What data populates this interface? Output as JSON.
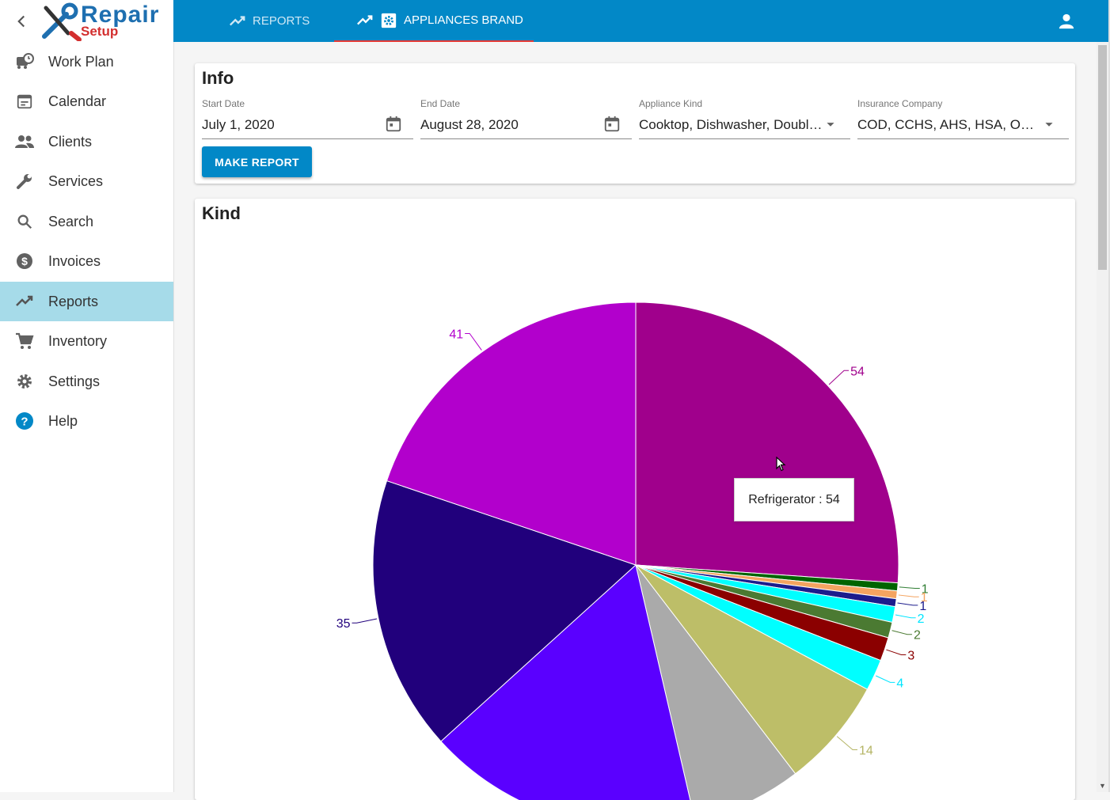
{
  "logo": {
    "text_top": "Repair",
    "text_bottom": "Setup"
  },
  "sidebar": {
    "items": [
      {
        "label": "Work Plan",
        "icon": "work-plan-icon"
      },
      {
        "label": "Calendar",
        "icon": "calendar-icon"
      },
      {
        "label": "Clients",
        "icon": "clients-icon"
      },
      {
        "label": "Services",
        "icon": "wrench-icon"
      },
      {
        "label": "Search",
        "icon": "search-icon"
      },
      {
        "label": "Invoices",
        "icon": "dollar-icon"
      },
      {
        "label": "Reports",
        "icon": "trending-icon",
        "active": true
      },
      {
        "label": "Inventory",
        "icon": "cart-icon"
      },
      {
        "label": "Settings",
        "icon": "gear-icon"
      },
      {
        "label": "Help",
        "icon": "help-icon"
      }
    ]
  },
  "tabs": {
    "reports": "REPORTS",
    "brand": "APPLIANCES BRAND"
  },
  "info": {
    "title": "Info",
    "start_date": {
      "label": "Start Date",
      "value": "July 1, 2020"
    },
    "end_date": {
      "label": "End Date",
      "value": "August 28, 2020"
    },
    "appliance_kind": {
      "label": "Appliance Kind",
      "value": "Cooktop, Dishwasher, Double Wall Oven"
    },
    "insurance": {
      "label": "Insurance Company",
      "value": "COD, CCHS, AHS, HSA, ORHP"
    },
    "button": "MAKE REPORT"
  },
  "kind": {
    "title": "Kind",
    "tooltip": "Refrigerator : 54"
  },
  "chart_data": {
    "type": "pie",
    "title": "Kind",
    "slices": [
      {
        "value": 54,
        "color": "#a0008c",
        "label": "54"
      },
      {
        "value": 1,
        "color": "#006400",
        "label": "1"
      },
      {
        "value": 1,
        "color": "#f4a460",
        "label": "1"
      },
      {
        "value": 1,
        "color": "#1c1c8c",
        "label": "1"
      },
      {
        "value": 2,
        "color": "#00ffff",
        "label": "2"
      },
      {
        "value": 2,
        "color": "#4b7a32",
        "label": "2"
      },
      {
        "value": 3,
        "color": "#8b0000",
        "label": "3"
      },
      {
        "value": 4,
        "color": "#00ffff",
        "label": "4"
      },
      {
        "value": 14,
        "color": "#bdbe68",
        "label": "14"
      },
      {
        "value": 14,
        "color": "#aaaaaa",
        "label": ""
      },
      {
        "value": 35,
        "color": "#5a00ff",
        "label": ""
      },
      {
        "value": 35,
        "color": "#21007c",
        "label": "35"
      },
      {
        "value": 41,
        "color": "#b200cc",
        "label": "41"
      }
    ],
    "label_colors": [
      "#a0008c",
      "#2e7d32",
      "#f4a460",
      "#1c1c8c",
      "#00e5ff",
      "#4b7a32",
      "#8b0000",
      "#00e5ff",
      "#b5b565",
      "#999999",
      "#5a00ff",
      "#21007c",
      "#b200cc"
    ]
  }
}
